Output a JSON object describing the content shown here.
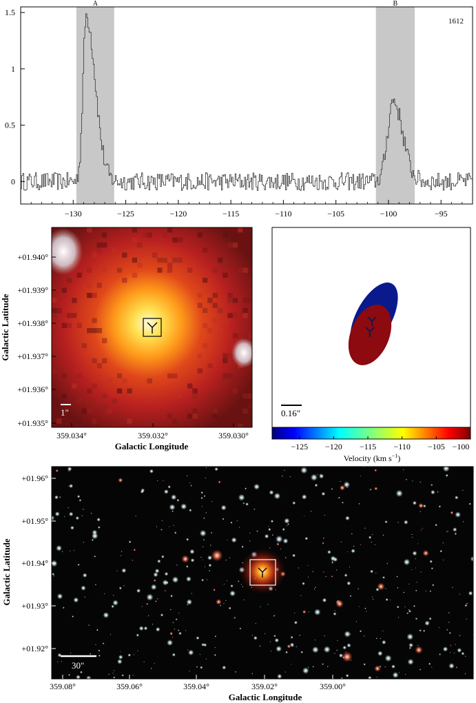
{
  "chart_data": [
    {
      "type": "line",
      "panel": "spectrum",
      "tag": "1612",
      "xlim": [
        -135,
        -92
      ],
      "ylim": [
        -0.2,
        1.55
      ],
      "xticks": [
        -130,
        -125,
        -120,
        -115,
        -110,
        -105,
        -100,
        -95
      ],
      "yticks": [
        0,
        0.5,
        1,
        1.5
      ],
      "xtick_labels": [
        "−130",
        "−125",
        "−120",
        "−115",
        "−110",
        "−105",
        "−100",
        "−95"
      ],
      "ytick_labels": [
        "0",
        "0.5",
        "1",
        "1.5"
      ],
      "shaded_regions": [
        {
          "label": "A",
          "x_range": [
            -129.7,
            -126.1
          ]
        },
        {
          "label": "B",
          "x_range": [
            -101.2,
            -97.5
          ]
        }
      ],
      "peaks": [
        {
          "label": "A",
          "center": -128.8,
          "height": 1.47
        },
        {
          "label": "B",
          "center": -99.6,
          "height": 0.72
        }
      ],
      "noise_level": 0.08
    },
    {
      "type": "heatmap",
      "panel": "zoom-image",
      "ylabel": "Galactic Latitude",
      "xlabel": "Galactic Longitude",
      "xtick_labels": [
        "359.034°",
        "359.032°",
        "359.030°"
      ],
      "ytick_labels": [
        "+01.940°",
        "+01.939°",
        "+01.938°",
        "+01.937°",
        "+01.936°",
        "+01.935°"
      ],
      "scalebar": "1\""
    },
    {
      "type": "scatter",
      "panel": "maser-spots",
      "scalebar": "0.16\"",
      "colorbar_label": "Velocity (km s",
      "colorbar_unit_exp": "−1",
      "colorbar_ticks": [
        "−125",
        "−120",
        "−115",
        "−110",
        "−105",
        "−100"
      ],
      "colorbar_range": [
        -129,
        -100
      ],
      "colors": {
        "blue": "#0a1a8c",
        "red": "#8c0a10"
      }
    },
    {
      "type": "heatmap",
      "panel": "field-image",
      "ylabel": "Galactic Latitude",
      "xlabel": "Galactic Longitude",
      "xtick_labels": [
        "359.08°",
        "359.06°",
        "359.04°",
        "359.02°",
        "359.00°"
      ],
      "ytick_labels": [
        "+01.96°",
        "+01.95°",
        "+01.94°",
        "+01.93°",
        "+01.92°"
      ],
      "scalebar": "30\""
    }
  ]
}
